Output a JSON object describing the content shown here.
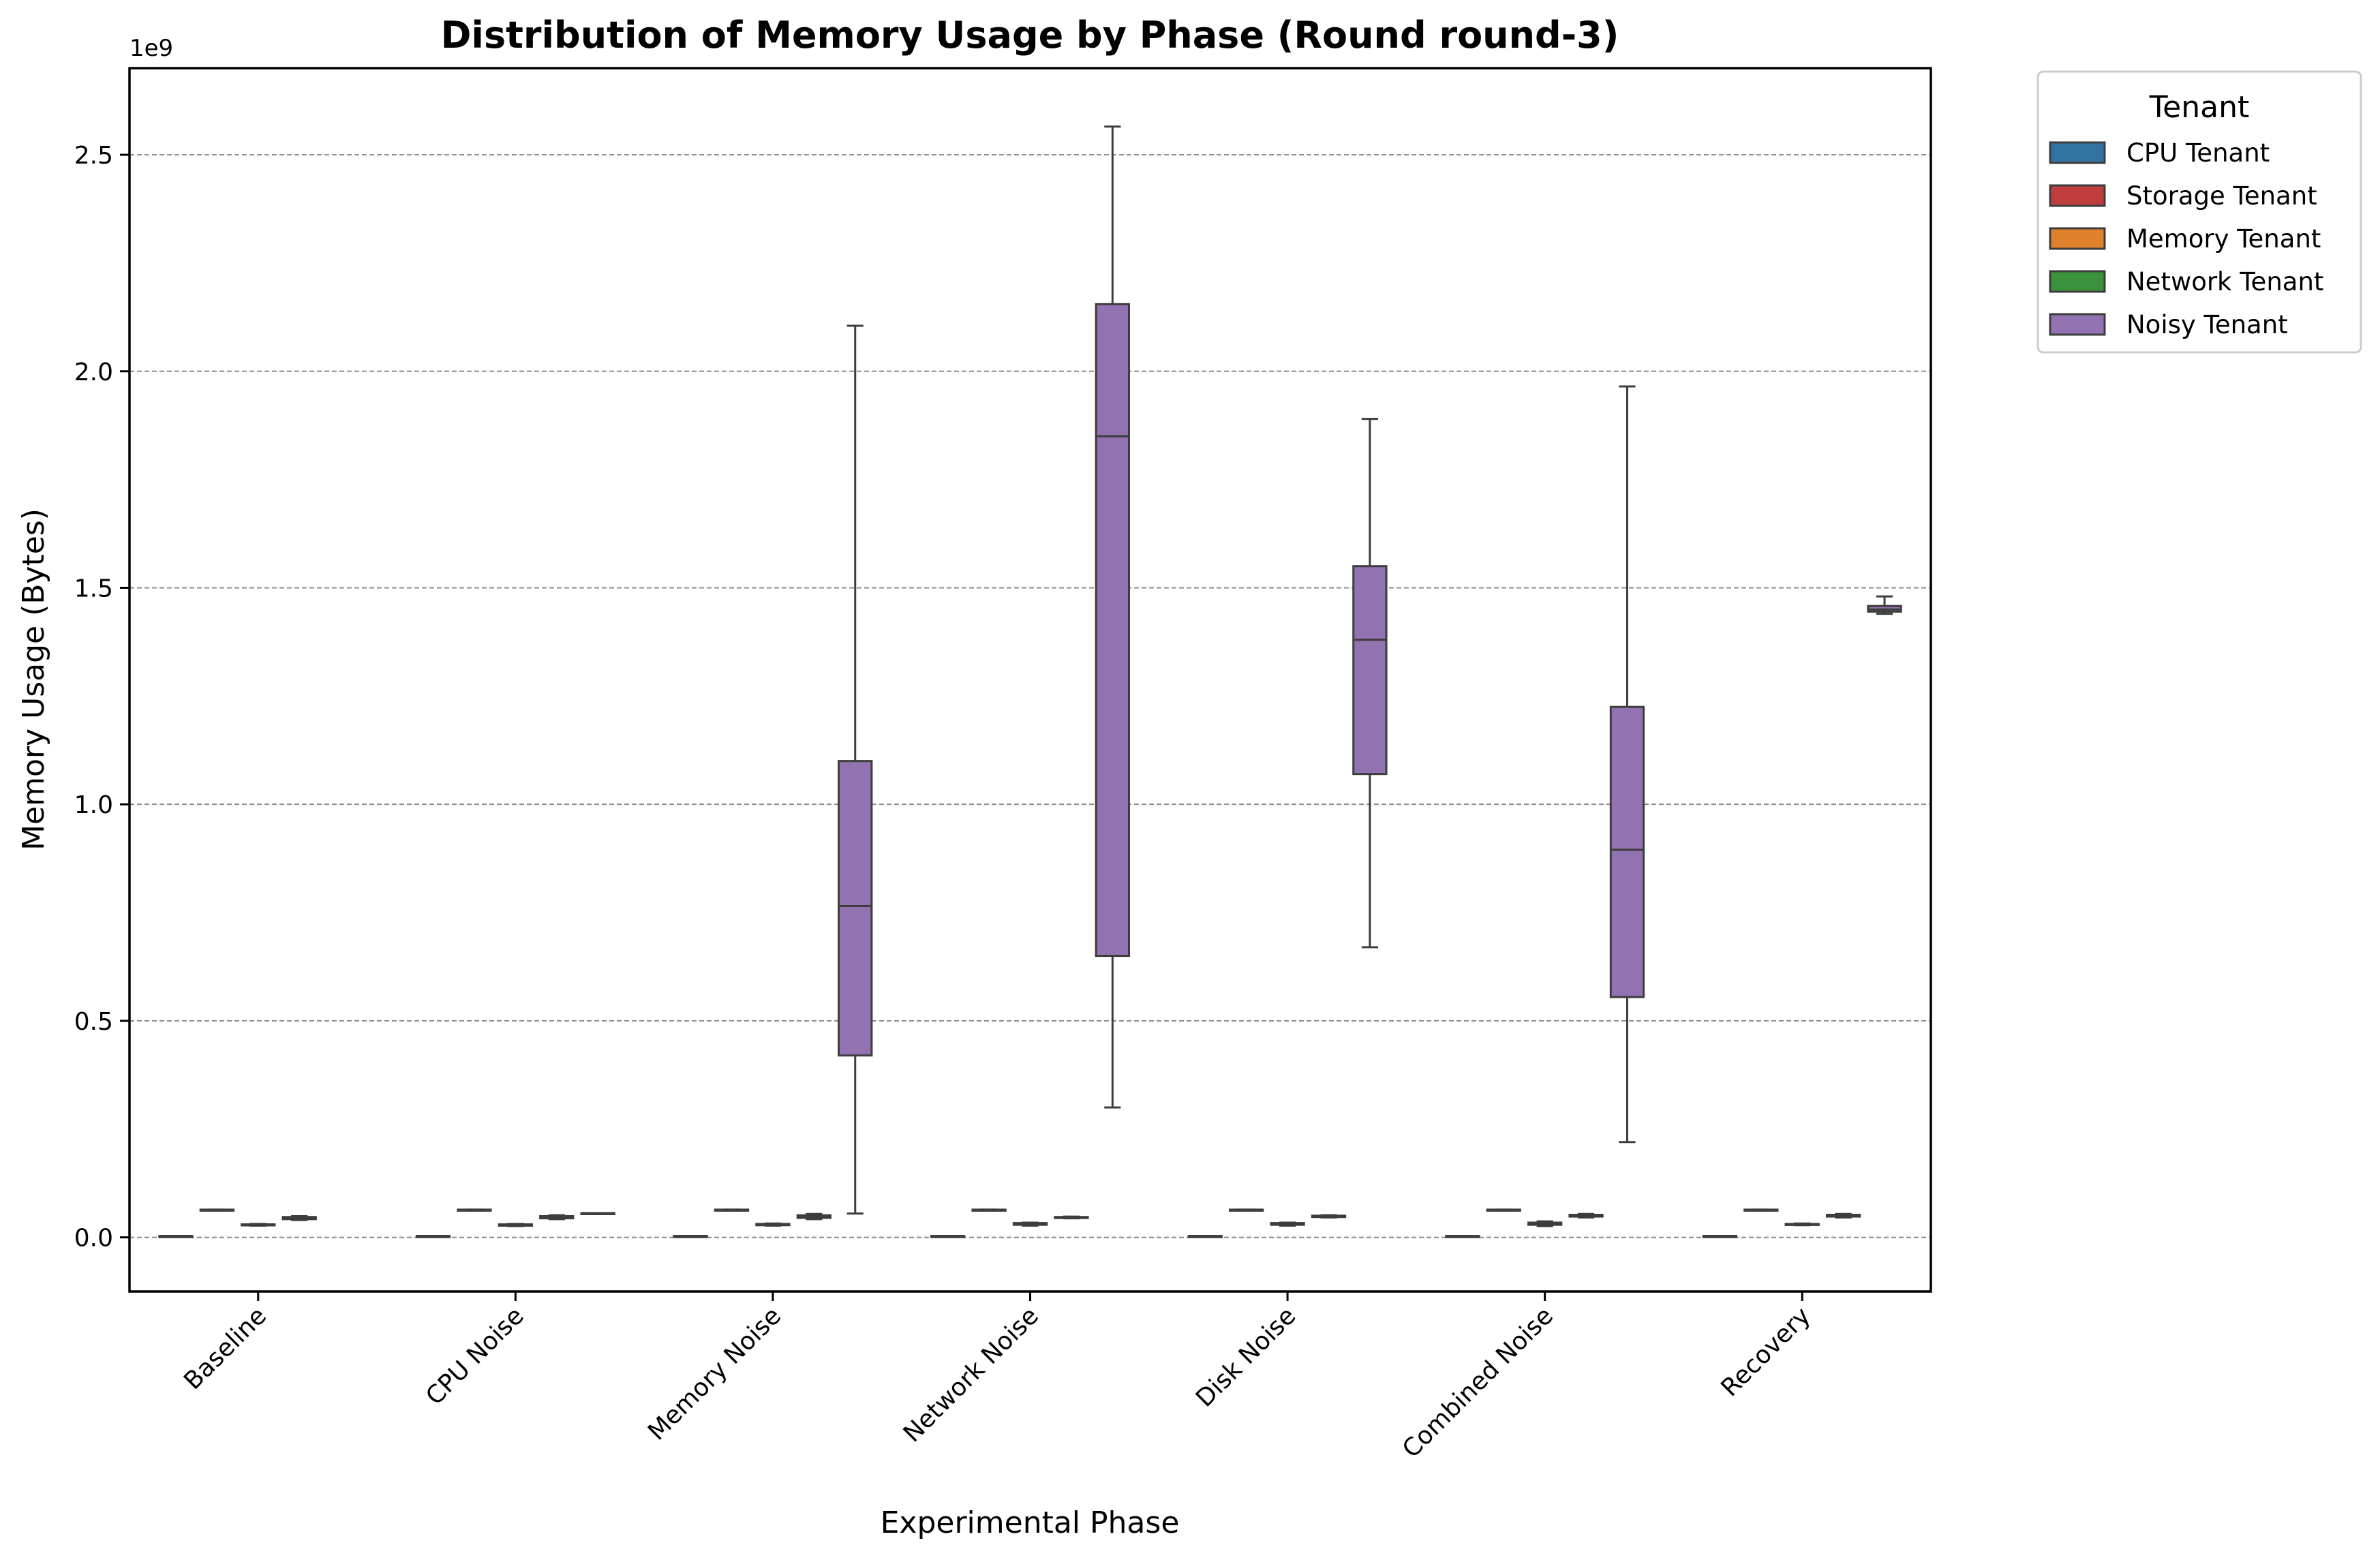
{
  "chart_data": {
    "type": "box",
    "title": "Distribution of Memory Usage by Phase (Round round-3)",
    "xlabel": "Experimental Phase",
    "ylabel": "Memory Usage (Bytes)",
    "y_offset_label": "1e9",
    "y_scale_factor": 1000000000,
    "ylim": [
      -0.125,
      2.7
    ],
    "y_ticks": [
      0.0,
      0.5,
      1.0,
      1.5,
      2.0,
      2.5
    ],
    "y_tick_labels": [
      "0.0",
      "0.5",
      "1.0",
      "1.5",
      "2.0",
      "2.5"
    ],
    "grid": "horizontal dashed",
    "legend_placement": "outside right",
    "legend_title": "Tenant",
    "categories": [
      "Baseline",
      "CPU Noise",
      "Memory Noise",
      "Network Noise",
      "Disk Noise",
      "Combined Noise",
      "Recovery"
    ],
    "series": [
      {
        "name": "CPU Tenant",
        "color": "#3274a1",
        "boxes": [
          {
            "whislo": 0.003,
            "q1": 0.003,
            "med": 0.003,
            "q3": 0.003,
            "whishi": 0.003
          },
          {
            "whislo": 0.003,
            "q1": 0.003,
            "med": 0.003,
            "q3": 0.003,
            "whishi": 0.003
          },
          {
            "whislo": 0.003,
            "q1": 0.003,
            "med": 0.003,
            "q3": 0.003,
            "whishi": 0.003
          },
          {
            "whislo": 0.003,
            "q1": 0.003,
            "med": 0.003,
            "q3": 0.003,
            "whishi": 0.003
          },
          {
            "whislo": 0.003,
            "q1": 0.003,
            "med": 0.003,
            "q3": 0.003,
            "whishi": 0.003
          },
          {
            "whislo": 0.003,
            "q1": 0.003,
            "med": 0.003,
            "q3": 0.003,
            "whishi": 0.003
          },
          {
            "whislo": 0.003,
            "q1": 0.003,
            "med": 0.003,
            "q3": 0.003,
            "whishi": 0.003
          }
        ]
      },
      {
        "name": "Storage Tenant",
        "color": "#c03d3e",
        "boxes": [
          {
            "whislo": 0.062,
            "q1": 0.062,
            "med": 0.063,
            "q3": 0.064,
            "whishi": 0.064
          },
          {
            "whislo": 0.062,
            "q1": 0.062,
            "med": 0.063,
            "q3": 0.064,
            "whishi": 0.064
          },
          {
            "whislo": 0.062,
            "q1": 0.062,
            "med": 0.063,
            "q3": 0.064,
            "whishi": 0.064
          },
          {
            "whislo": 0.062,
            "q1": 0.062,
            "med": 0.063,
            "q3": 0.064,
            "whishi": 0.064
          },
          {
            "whislo": 0.062,
            "q1": 0.062,
            "med": 0.063,
            "q3": 0.064,
            "whishi": 0.064
          },
          {
            "whislo": 0.062,
            "q1": 0.062,
            "med": 0.063,
            "q3": 0.064,
            "whishi": 0.064
          },
          {
            "whislo": 0.062,
            "q1": 0.062,
            "med": 0.063,
            "q3": 0.064,
            "whishi": 0.064
          }
        ]
      },
      {
        "name": "Memory Tenant",
        "color": "#e1812c",
        "boxes": [
          {
            "whislo": 0.027,
            "q1": 0.028,
            "med": 0.029,
            "q3": 0.03,
            "whishi": 0.031
          },
          {
            "whislo": 0.026,
            "q1": 0.027,
            "med": 0.029,
            "q3": 0.03,
            "whishi": 0.031
          },
          {
            "whislo": 0.027,
            "q1": 0.028,
            "med": 0.03,
            "q3": 0.031,
            "whishi": 0.032
          },
          {
            "whislo": 0.027,
            "q1": 0.029,
            "med": 0.031,
            "q3": 0.033,
            "whishi": 0.034
          },
          {
            "whislo": 0.027,
            "q1": 0.029,
            "med": 0.031,
            "q3": 0.033,
            "whishi": 0.034
          },
          {
            "whislo": 0.026,
            "q1": 0.029,
            "med": 0.031,
            "q3": 0.034,
            "whishi": 0.037
          },
          {
            "whislo": 0.028,
            "q1": 0.029,
            "med": 0.03,
            "q3": 0.031,
            "whishi": 0.032
          }
        ]
      },
      {
        "name": "Network Tenant",
        "color": "#3a923a",
        "boxes": [
          {
            "whislo": 0.04,
            "q1": 0.042,
            "med": 0.045,
            "q3": 0.047,
            "whishi": 0.049
          },
          {
            "whislo": 0.042,
            "q1": 0.044,
            "med": 0.047,
            "q3": 0.049,
            "whishi": 0.051
          },
          {
            "whislo": 0.042,
            "q1": 0.045,
            "med": 0.048,
            "q3": 0.051,
            "whishi": 0.054
          },
          {
            "whislo": 0.044,
            "q1": 0.045,
            "med": 0.046,
            "q3": 0.047,
            "whishi": 0.048
          },
          {
            "whislo": 0.046,
            "q1": 0.047,
            "med": 0.048,
            "q3": 0.05,
            "whishi": 0.051
          },
          {
            "whislo": 0.046,
            "q1": 0.048,
            "med": 0.05,
            "q3": 0.052,
            "whishi": 0.054
          },
          {
            "whislo": 0.046,
            "q1": 0.048,
            "med": 0.05,
            "q3": 0.052,
            "whishi": 0.054
          }
        ]
      },
      {
        "name": "Noisy Tenant",
        "color": "#9372b2",
        "boxes": [
          null,
          {
            "whislo": 0.054,
            "q1": 0.054,
            "med": 0.055,
            "q3": 0.056,
            "whishi": 0.056
          },
          {
            "whislo": 0.055,
            "q1": 0.42,
            "med": 0.765,
            "q3": 1.1,
            "whishi": 2.105
          },
          {
            "whislo": 0.3,
            "q1": 0.65,
            "med": 1.85,
            "q3": 2.155,
            "whishi": 2.565
          },
          {
            "whislo": 0.67,
            "q1": 1.07,
            "med": 1.38,
            "q3": 1.55,
            "whishi": 1.89
          },
          {
            "whislo": 0.22,
            "q1": 0.555,
            "med": 0.895,
            "q3": 1.225,
            "whishi": 1.965
          },
          {
            "whislo": 1.44,
            "q1": 1.445,
            "med": 1.45,
            "q3": 1.458,
            "whishi": 1.48
          }
        ]
      }
    ]
  }
}
